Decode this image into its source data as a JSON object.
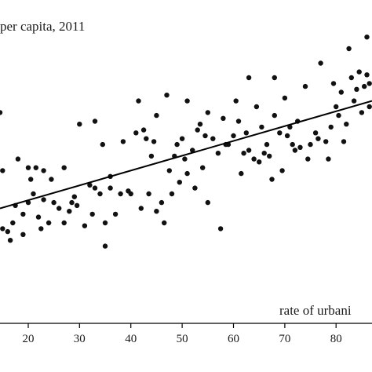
{
  "chart_data": {
    "type": "scatter",
    "ylabel": "per capita, 2011",
    "xlabel": "rate of urbani",
    "xlim": [
      14.5,
      87
    ],
    "ylim": [
      0,
      100
    ],
    "xticks": [
      20,
      30,
      40,
      50,
      60,
      70,
      80
    ],
    "grid": false,
    "trendline": {
      "x": [
        14.5,
        87
      ],
      "y": [
        35,
        72
      ]
    },
    "points": [
      {
        "x": 14.5,
        "y": 68
      },
      {
        "x": 15,
        "y": 48
      },
      {
        "x": 15,
        "y": 28
      },
      {
        "x": 16,
        "y": 27
      },
      {
        "x": 16.5,
        "y": 24
      },
      {
        "x": 17,
        "y": 30
      },
      {
        "x": 17.5,
        "y": 36
      },
      {
        "x": 18,
        "y": 52
      },
      {
        "x": 19,
        "y": 26
      },
      {
        "x": 19,
        "y": 33
      },
      {
        "x": 20,
        "y": 49
      },
      {
        "x": 20,
        "y": 37
      },
      {
        "x": 20.5,
        "y": 45
      },
      {
        "x": 21,
        "y": 40
      },
      {
        "x": 21.5,
        "y": 49
      },
      {
        "x": 22,
        "y": 32
      },
      {
        "x": 22.5,
        "y": 28
      },
      {
        "x": 23,
        "y": 48
      },
      {
        "x": 23,
        "y": 38
      },
      {
        "x": 24,
        "y": 30
      },
      {
        "x": 24.5,
        "y": 45
      },
      {
        "x": 25,
        "y": 37
      },
      {
        "x": 26,
        "y": 35
      },
      {
        "x": 27,
        "y": 49
      },
      {
        "x": 27,
        "y": 30
      },
      {
        "x": 28,
        "y": 34
      },
      {
        "x": 28.5,
        "y": 37
      },
      {
        "x": 29,
        "y": 39
      },
      {
        "x": 29.5,
        "y": 36
      },
      {
        "x": 30,
        "y": 64
      },
      {
        "x": 31,
        "y": 29
      },
      {
        "x": 32,
        "y": 43
      },
      {
        "x": 32.5,
        "y": 33
      },
      {
        "x": 33,
        "y": 65
      },
      {
        "x": 33,
        "y": 42
      },
      {
        "x": 34,
        "y": 40
      },
      {
        "x": 34.5,
        "y": 57
      },
      {
        "x": 35,
        "y": 22
      },
      {
        "x": 35,
        "y": 30
      },
      {
        "x": 36,
        "y": 42
      },
      {
        "x": 36,
        "y": 46
      },
      {
        "x": 37,
        "y": 33
      },
      {
        "x": 38,
        "y": 40
      },
      {
        "x": 38.5,
        "y": 58
      },
      {
        "x": 39.5,
        "y": 41
      },
      {
        "x": 40,
        "y": 40
      },
      {
        "x": 41,
        "y": 61
      },
      {
        "x": 41.5,
        "y": 72
      },
      {
        "x": 42,
        "y": 35
      },
      {
        "x": 42.5,
        "y": 62
      },
      {
        "x": 43,
        "y": 59
      },
      {
        "x": 43.5,
        "y": 40
      },
      {
        "x": 44,
        "y": 53
      },
      {
        "x": 44.5,
        "y": 58
      },
      {
        "x": 45,
        "y": 67
      },
      {
        "x": 45,
        "y": 34
      },
      {
        "x": 46,
        "y": 37
      },
      {
        "x": 46.5,
        "y": 30
      },
      {
        "x": 47,
        "y": 74
      },
      {
        "x": 47.5,
        "y": 48
      },
      {
        "x": 48,
        "y": 40
      },
      {
        "x": 48.5,
        "y": 53
      },
      {
        "x": 49,
        "y": 57
      },
      {
        "x": 49.5,
        "y": 44
      },
      {
        "x": 50,
        "y": 59
      },
      {
        "x": 50.5,
        "y": 52
      },
      {
        "x": 51,
        "y": 72
      },
      {
        "x": 51,
        "y": 47
      },
      {
        "x": 52,
        "y": 55
      },
      {
        "x": 52.5,
        "y": 42
      },
      {
        "x": 53,
        "y": 62
      },
      {
        "x": 53.5,
        "y": 64
      },
      {
        "x": 54,
        "y": 49
      },
      {
        "x": 54.5,
        "y": 60
      },
      {
        "x": 55,
        "y": 37
      },
      {
        "x": 55,
        "y": 68
      },
      {
        "x": 56,
        "y": 59
      },
      {
        "x": 57,
        "y": 54
      },
      {
        "x": 57.5,
        "y": 28
      },
      {
        "x": 58,
        "y": 66
      },
      {
        "x": 58.5,
        "y": 57
      },
      {
        "x": 59,
        "y": 57
      },
      {
        "x": 60,
        "y": 60
      },
      {
        "x": 60.5,
        "y": 72
      },
      {
        "x": 61,
        "y": 65
      },
      {
        "x": 61.5,
        "y": 47
      },
      {
        "x": 62,
        "y": 54
      },
      {
        "x": 62.5,
        "y": 61
      },
      {
        "x": 63,
        "y": 80
      },
      {
        "x": 63,
        "y": 55
      },
      {
        "x": 64,
        "y": 52
      },
      {
        "x": 64.5,
        "y": 70
      },
      {
        "x": 65,
        "y": 51
      },
      {
        "x": 65.5,
        "y": 63
      },
      {
        "x": 66,
        "y": 54
      },
      {
        "x": 66.5,
        "y": 57
      },
      {
        "x": 67,
        "y": 53
      },
      {
        "x": 67.5,
        "y": 45
      },
      {
        "x": 68,
        "y": 80
      },
      {
        "x": 68,
        "y": 67
      },
      {
        "x": 69,
        "y": 61
      },
      {
        "x": 69.5,
        "y": 48
      },
      {
        "x": 70,
        "y": 73
      },
      {
        "x": 70.5,
        "y": 60
      },
      {
        "x": 71,
        "y": 63
      },
      {
        "x": 71.5,
        "y": 57
      },
      {
        "x": 72,
        "y": 55
      },
      {
        "x": 72.5,
        "y": 65
      },
      {
        "x": 73,
        "y": 56
      },
      {
        "x": 74,
        "y": 77
      },
      {
        "x": 74.5,
        "y": 52
      },
      {
        "x": 75,
        "y": 57
      },
      {
        "x": 76,
        "y": 61
      },
      {
        "x": 76.5,
        "y": 59
      },
      {
        "x": 77,
        "y": 85
      },
      {
        "x": 78,
        "y": 58
      },
      {
        "x": 78.5,
        "y": 52
      },
      {
        "x": 79,
        "y": 63
      },
      {
        "x": 79.5,
        "y": 78
      },
      {
        "x": 80,
        "y": 70
      },
      {
        "x": 80.5,
        "y": 67
      },
      {
        "x": 81,
        "y": 75
      },
      {
        "x": 81.5,
        "y": 58
      },
      {
        "x": 82,
        "y": 64
      },
      {
        "x": 82.5,
        "y": 90
      },
      {
        "x": 83,
        "y": 80
      },
      {
        "x": 83.5,
        "y": 72
      },
      {
        "x": 84,
        "y": 76
      },
      {
        "x": 84.5,
        "y": 82
      },
      {
        "x": 85,
        "y": 68
      },
      {
        "x": 85.5,
        "y": 77
      },
      {
        "x": 86,
        "y": 81
      },
      {
        "x": 86,
        "y": 94
      },
      {
        "x": 86.5,
        "y": 70
      },
      {
        "x": 86.5,
        "y": 78
      }
    ]
  }
}
